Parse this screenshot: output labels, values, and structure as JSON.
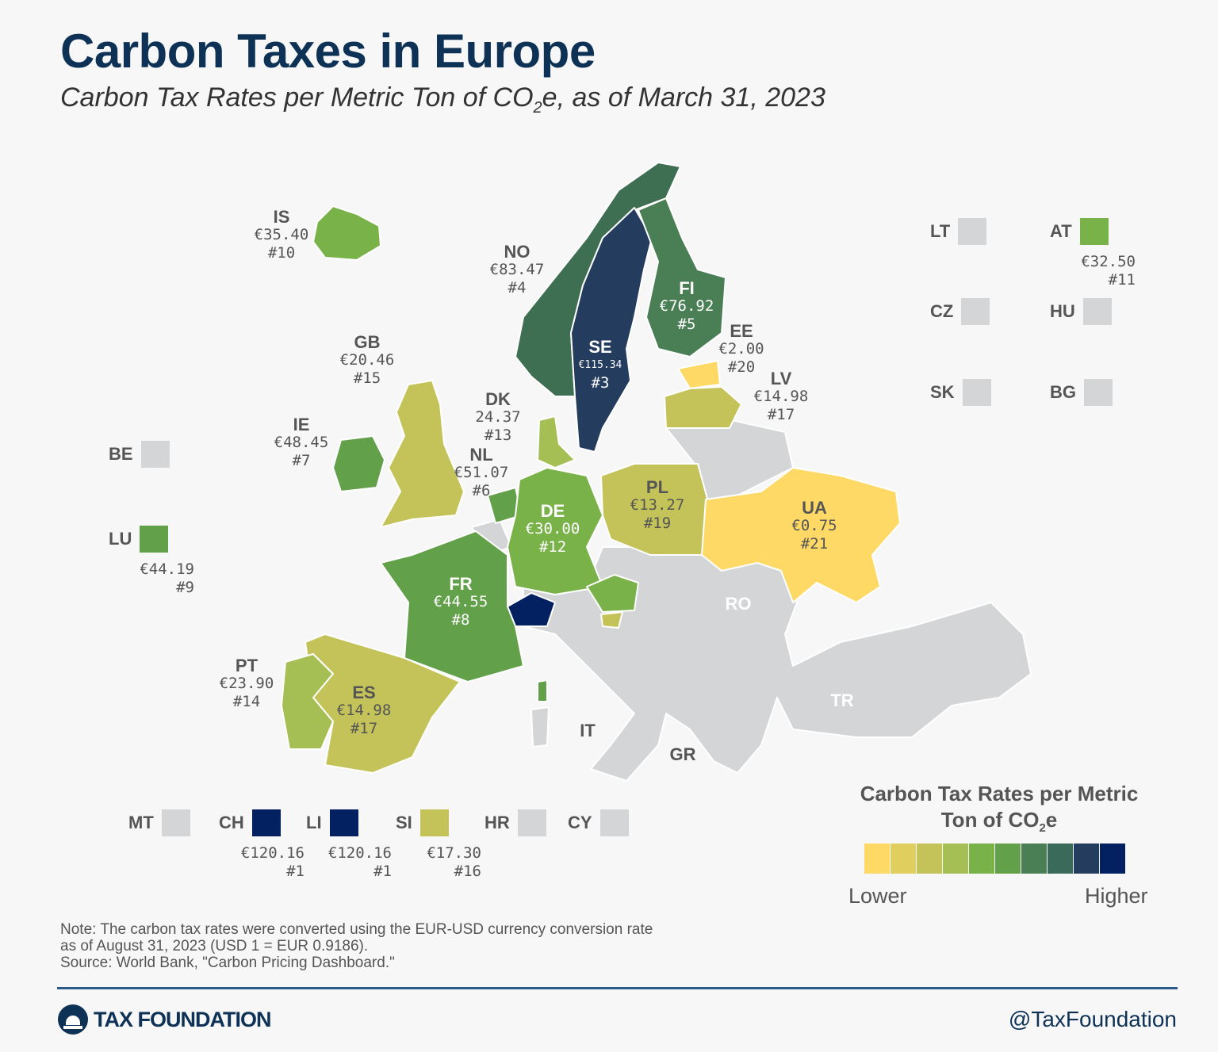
{
  "title": "Carbon Taxes in Europe",
  "subtitle": {
    "pre": "Carbon Tax Rates per Metric Ton of CO",
    "sub": "2",
    "post": "e, as of March 31, 2023"
  },
  "colors": {
    "no_tax": "#d4d5d7",
    "ramp": [
      "#fed966",
      "#e0cf5f",
      "#c4c35a",
      "#a6bf55",
      "#7ab24a",
      "#62a04a",
      "#4a7e55",
      "#3a6a5a",
      "#243c5e",
      "#032060"
    ]
  },
  "map_labels": [
    {
      "code": "IS",
      "value": "€35.40",
      "rank": "#10"
    },
    {
      "code": "NO",
      "value": "€83.47",
      "rank": "#4"
    },
    {
      "code": "FI",
      "value": "€76.92",
      "rank": "#5"
    },
    {
      "code": "SE",
      "value": "€115.34",
      "rank": "#3"
    },
    {
      "code": "EE",
      "value": "€2.00",
      "rank": "#20"
    },
    {
      "code": "LV",
      "value": "€14.98",
      "rank": "#17"
    },
    {
      "code": "GB",
      "value": "€20.46",
      "rank": "#15"
    },
    {
      "code": "DK",
      "value": "24.37",
      "rank": "#13"
    },
    {
      "code": "IE",
      "value": "€48.45",
      "rank": "#7"
    },
    {
      "code": "NL",
      "value": "€51.07",
      "rank": "#6"
    },
    {
      "code": "PL",
      "value": "€13.27",
      "rank": "#19"
    },
    {
      "code": "UA",
      "value": "€0.75",
      "rank": "#21"
    },
    {
      "code": "DE",
      "value": "€30.00",
      "rank": "#12"
    },
    {
      "code": "FR",
      "value": "€44.55",
      "rank": "#8"
    },
    {
      "code": "PT",
      "value": "€23.90",
      "rank": "#14"
    },
    {
      "code": "ES",
      "value": "€14.98",
      "rank": "#17"
    }
  ],
  "plain_labels": [
    "RO",
    "TR",
    "IT",
    "GR"
  ],
  "boxes": [
    {
      "code": "BE",
      "value": "",
      "rank": ""
    },
    {
      "code": "LU",
      "value": "€44.19",
      "rank": "#9"
    },
    {
      "code": "LT",
      "value": "",
      "rank": ""
    },
    {
      "code": "AT",
      "value": "€32.50",
      "rank": "#11"
    },
    {
      "code": "CZ",
      "value": "",
      "rank": ""
    },
    {
      "code": "HU",
      "value": "",
      "rank": ""
    },
    {
      "code": "SK",
      "value": "",
      "rank": ""
    },
    {
      "code": "BG",
      "value": "",
      "rank": ""
    },
    {
      "code": "MT",
      "value": "",
      "rank": ""
    },
    {
      "code": "CH",
      "value": "€120.16",
      "rank": "#1"
    },
    {
      "code": "LI",
      "value": "€120.16",
      "rank": "#1"
    },
    {
      "code": "SI",
      "value": "€17.30",
      "rank": "#16"
    },
    {
      "code": "HR",
      "value": "",
      "rank": ""
    },
    {
      "code": "CY",
      "value": "",
      "rank": ""
    }
  ],
  "legend": {
    "title_pre": "Carbon Tax Rates per Metric Ton of CO",
    "title_sub": "2",
    "title_post": "e",
    "low": "Lower",
    "high": "Higher"
  },
  "note": [
    "Note: The carbon tax rates were converted using the EUR-USD currency conversion rate",
    "as of August 31, 2023 (USD 1 = EUR 0.9186).",
    "Source: World Bank, \"Carbon Pricing Dashboard.\""
  ],
  "footer": {
    "logo": "TAX FOUNDATION",
    "handle": "@TaxFoundation"
  }
}
